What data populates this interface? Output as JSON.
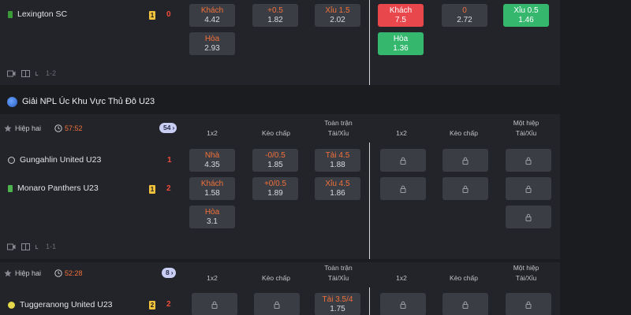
{
  "match1": {
    "home_team": "Lexington SC",
    "card": "1",
    "score": "0",
    "odds_left": [
      {
        "label": "Khách",
        "value": "4.42"
      },
      {
        "label": "+0.5",
        "value": "1.82"
      },
      {
        "label": "Xỉu 1.5",
        "value": "2.02"
      },
      {
        "label": "Hòa",
        "value": "2.93"
      }
    ],
    "odds_right": [
      {
        "label": "Khách",
        "value": "7.5"
      },
      {
        "label": "0",
        "value": "2.72"
      },
      {
        "label": "Xỉu 0.5",
        "value": "1.46"
      },
      {
        "label": "Hòa",
        "value": "1.36"
      }
    ],
    "footer_score": "1-2"
  },
  "league1": {
    "name": "Giải NPL Úc Khu Vực Thủ Đô U23"
  },
  "match2": {
    "phase": "Hiệp hai",
    "time": "57:52",
    "more_count": "54",
    "headers": {
      "col1": "1x2",
      "col2": "Kèo chấp",
      "col3_line1": "Toàn trận",
      "col3_line2": "Tài/Xỉu",
      "col4": "1x2",
      "col5": "Kèo chấp",
      "col6_line1": "Một hiệp",
      "col6_line2": "Tài/Xỉu"
    },
    "home_team": "Gungahlin United U23",
    "home_score": "1",
    "away_team": "Monaro Panthers U23",
    "away_card": "1",
    "away_score": "2",
    "odds_home": [
      {
        "label": "Nhà",
        "value": "4.35"
      },
      {
        "label": "-0/0.5",
        "value": "1.85"
      },
      {
        "label": "Tài 4.5",
        "value": "1.88"
      }
    ],
    "odds_away": [
      {
        "label": "Khách",
        "value": "1.58"
      },
      {
        "label": "+0/0.5",
        "value": "1.89"
      },
      {
        "label": "Xỉu 4.5",
        "value": "1.86"
      }
    ],
    "odds_draw": {
      "label": "Hòa",
      "value": "3.1"
    },
    "footer_score": "1-1"
  },
  "match3": {
    "phase": "Hiệp hai",
    "time": "52:28",
    "more_count": "8",
    "headers": {
      "col1": "1x2",
      "col2": "Kèo chấp",
      "col3_line1": "Toàn trận",
      "col3_line2": "Tài/Xỉu",
      "col4": "1x2",
      "col5": "Kèo chấp",
      "col6_line1": "Một hiệp",
      "col6_line2": "Tài/Xỉu"
    },
    "home_team": "Tuggeranong United U23",
    "home_card": "2",
    "home_score": "2",
    "odds_home_total": {
      "label": "Tài 3.5/4",
      "value": "1.75"
    }
  },
  "colors": {
    "accent_orange": "#f2703a",
    "red": "#e8474c",
    "green": "#35b86e",
    "card_yellow": "#f0c23c"
  }
}
